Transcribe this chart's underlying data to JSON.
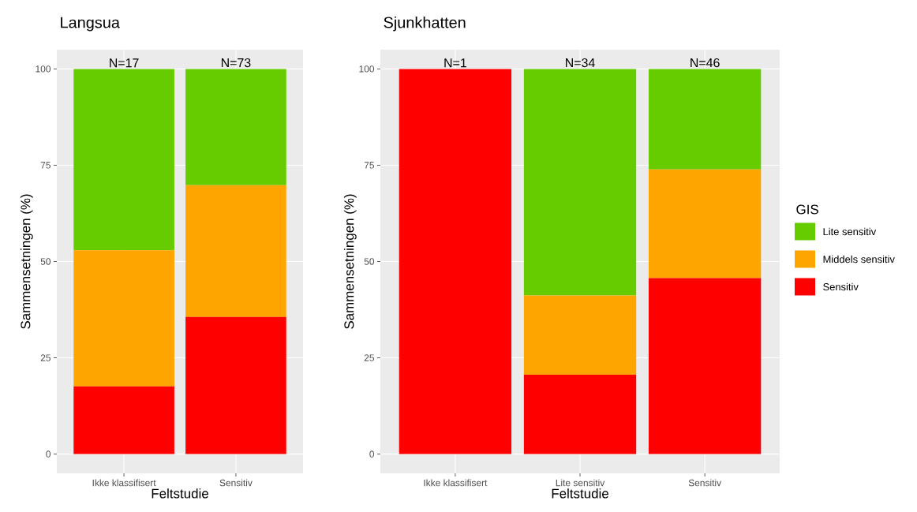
{
  "chart_data": [
    {
      "type": "bar",
      "title": "Langsua",
      "xlabel": "Feltstudie",
      "ylabel": "Sammensetningen (%)",
      "categories": [
        "Ikke klassifisert",
        "Sensitiv"
      ],
      "stacked": true,
      "ylim": [
        -5,
        105
      ],
      "yticks": [
        0,
        25,
        50,
        75,
        100
      ],
      "grid": true,
      "series": [
        {
          "color": "#ff0000",
          "values": [
            17.6,
            35.6
          ]
        },
        {
          "color": "#ffa500",
          "values": [
            35.3,
            34.2
          ]
        },
        {
          "color": "#66cc00",
          "values": [
            47.1,
            30.2
          ]
        }
      ],
      "annotations": [
        {
          "text": "N=17",
          "x": "Ikke klassifisert",
          "y": 100
        },
        {
          "text": "N=73",
          "x": "Sensitiv",
          "y": 100
        }
      ]
    },
    {
      "type": "bar",
      "title": "Sjunkhatten",
      "xlabel": "Feltstudie",
      "ylabel": "Sammensetningen (%)",
      "categories": [
        "Ikke klassifisert",
        "Lite sensitiv",
        "Sensitiv"
      ],
      "stacked": true,
      "ylim": [
        -5,
        105
      ],
      "yticks": [
        0,
        25,
        50,
        75,
        100
      ],
      "grid": true,
      "legend": "right",
      "legend_title": "GIS",
      "series": [
        {
          "name": "Sensitiv",
          "color": "#ff0000",
          "values": [
            100,
            20.6,
            45.7
          ]
        },
        {
          "name": "Middels sensitiv",
          "color": "#ffa500",
          "values": [
            0,
            20.6,
            28.2
          ]
        },
        {
          "name": "Lite sensitiv",
          "color": "#66cc00",
          "values": [
            0,
            58.8,
            26.1
          ]
        }
      ],
      "annotations": [
        {
          "text": "N=1",
          "x": "Ikke klassifisert",
          "y": 100
        },
        {
          "text": "N=34",
          "x": "Lite sensitiv",
          "y": 100
        },
        {
          "text": "N=46",
          "x": "Sensitiv",
          "y": 100
        }
      ]
    }
  ]
}
